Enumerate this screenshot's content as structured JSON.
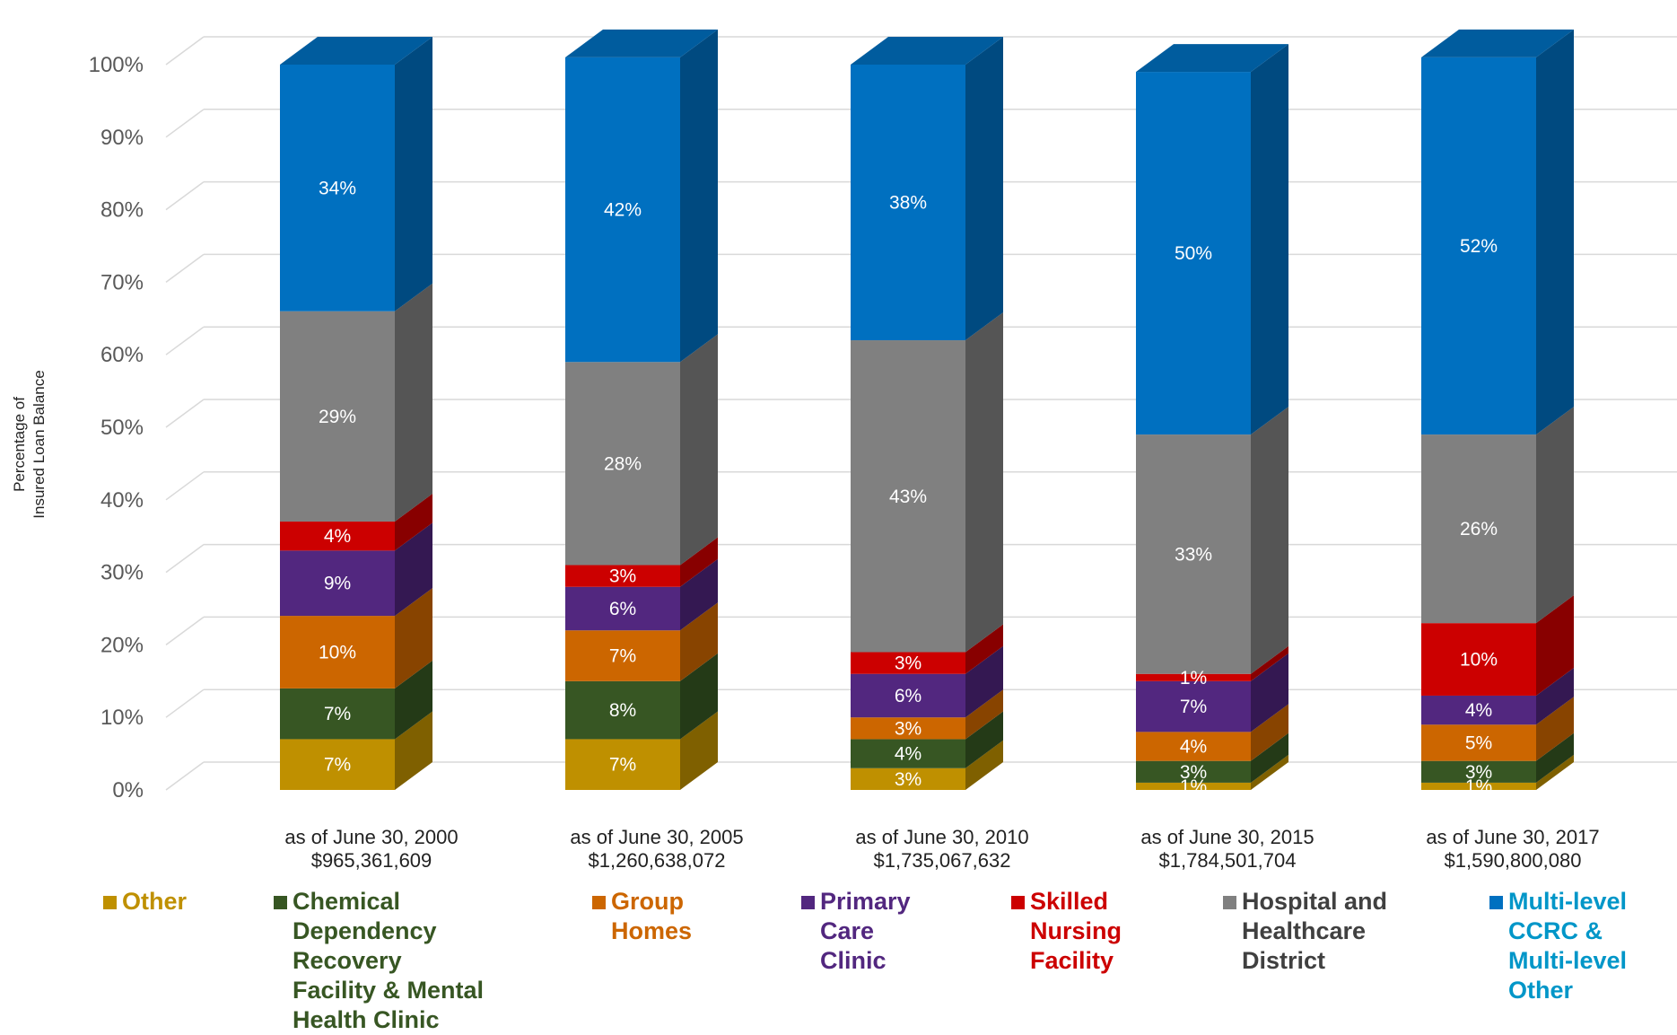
{
  "chart_data": {
    "type": "bar",
    "stacked": true,
    "three_d": true,
    "ylabel_lines": [
      "Percentage of",
      "Insured Loan Balance"
    ],
    "ylim": [
      0,
      100
    ],
    "yticks": [
      "0%",
      "10%",
      "20%",
      "30%",
      "40%",
      "50%",
      "60%",
      "70%",
      "80%",
      "90%",
      "100%"
    ],
    "categories": [
      [
        "as of June 30, 2000",
        "$965,361,609"
      ],
      [
        "as of June 30, 2005",
        "$1,260,638,072"
      ],
      [
        "as of June 30, 2010",
        "$1,735,067,632"
      ],
      [
        "as of June 30, 2015",
        "$1,784,501,704"
      ],
      [
        "as of June 30, 2017",
        "$1,590,800,080"
      ]
    ],
    "series": [
      {
        "name": "Other",
        "values": [
          7,
          7,
          3,
          1,
          1
        ],
        "labels": [
          "7%",
          "7%",
          "3%",
          "1%",
          "1%"
        ],
        "color": "#BF9000",
        "side": "#7F6000",
        "top": "#D6A800",
        "text_color": "#BF9000"
      },
      {
        "name": "Chemical Dependency Recovery Facility & Mental Health Clinic",
        "values": [
          7,
          8,
          4,
          3,
          3
        ],
        "labels": [
          "7%",
          "8%",
          "4%",
          "3%",
          "3%"
        ],
        "color": "#375623",
        "side": "#243A17",
        "top": "#4A7030",
        "text_color": "#375623"
      },
      {
        "name": "Group Homes",
        "values": [
          10,
          7,
          3,
          4,
          5
        ],
        "labels": [
          "10%",
          "7%",
          "3%",
          "4%",
          "5%"
        ],
        "color": "#CC6600",
        "side": "#884400",
        "top": "#E07A10",
        "text_color": "#CC6600"
      },
      {
        "name": "Primary Care Clinic",
        "values": [
          9,
          6,
          6,
          7,
          4
        ],
        "labels": [
          "9%",
          "6%",
          "6%",
          "7%",
          "4%"
        ],
        "color": "#52277F",
        "side": "#341852",
        "top": "#6A3A9E",
        "text_color": "#52277F"
      },
      {
        "name": "Skilled Nursing Facility",
        "values": [
          4,
          3,
          3,
          1,
          10
        ],
        "labels": [
          "4%",
          "3%",
          "3%",
          "1%",
          "10%"
        ],
        "color": "#CC0000",
        "side": "#880000",
        "top": "#E21A1A",
        "text_color": "#CC0000"
      },
      {
        "name": "Hospital and Healthcare District",
        "values": [
          29,
          28,
          43,
          33,
          26
        ],
        "labels": [
          "29%",
          "28%",
          "43%",
          "33%",
          "26%"
        ],
        "color": "#808080",
        "side": "#555555",
        "top": "#9A9A9A",
        "text_color": "#404040"
      },
      {
        "name": "Multi-level CCRC & Multi-level Other",
        "values": [
          34,
          42,
          38,
          50,
          52
        ],
        "labels": [
          "34%",
          "42%",
          "38%",
          "50%",
          "52%"
        ],
        "color": "#0070C0",
        "side": "#004A80",
        "top": "#005C9E",
        "text_color": "#0096C8"
      }
    ],
    "legend": {
      "position": "bottom",
      "items": [
        {
          "lines": [
            "Other"
          ]
        },
        {
          "lines": [
            "Chemical",
            "Dependency",
            "Recovery",
            "Facility & Mental",
            "Health Clinic"
          ]
        },
        {
          "lines": [
            "Group",
            "Homes"
          ]
        },
        {
          "lines": [
            "Primary",
            "Care",
            "Clinic"
          ]
        },
        {
          "lines": [
            "Skilled",
            "Nursing",
            "Facility"
          ]
        },
        {
          "lines": [
            "Hospital and",
            "Healthcare",
            "District"
          ]
        },
        {
          "lines": [
            "Multi-level",
            "CCRC &",
            "Multi-level",
            "Other"
          ]
        }
      ]
    },
    "grid": true
  }
}
